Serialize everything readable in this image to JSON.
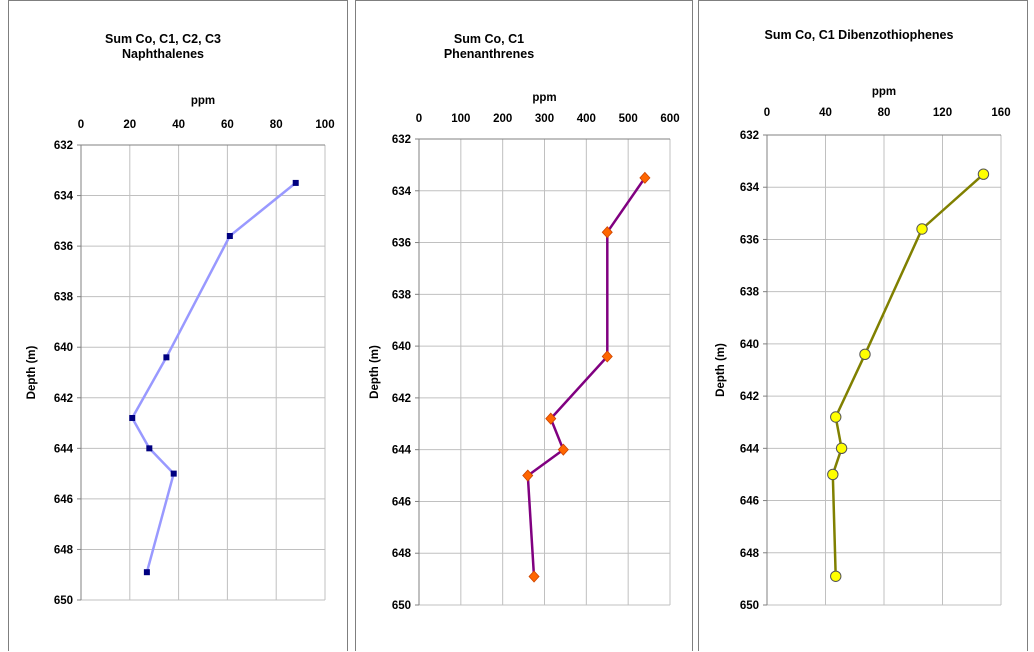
{
  "chart_data": [
    {
      "type": "line",
      "title": [
        "Sum Co, C1, C2, C3",
        "Naphthalenes"
      ],
      "xlabel": "ppm",
      "ylabel": "Depth (m)",
      "xlim": [
        0,
        100
      ],
      "ylim": [
        632,
        650
      ],
      "y_inverted": true,
      "grid": "on",
      "x_axis_position": "top",
      "xticks": [
        "0",
        "20",
        "40",
        "60",
        "80",
        "100"
      ],
      "yticks": [
        "632",
        "634",
        "636",
        "638",
        "640",
        "642",
        "644",
        "646",
        "648",
        "650"
      ],
      "series": [
        {
          "color": "#9999ff",
          "marker": "square",
          "marker_color": "#000080",
          "x": [
            88,
            61,
            35,
            21,
            28,
            38,
            27
          ],
          "y": [
            633.5,
            635.6,
            640.4,
            642.8,
            644.0,
            645.0,
            648.9
          ]
        }
      ]
    },
    {
      "type": "line",
      "title": [
        "Sum Co, C1",
        "Phenanthrenes"
      ],
      "xlabel": "ppm",
      "ylabel": "Depth (m)",
      "xlim": [
        0,
        600
      ],
      "ylim": [
        632,
        650
      ],
      "y_inverted": true,
      "grid": "on",
      "x_axis_position": "top",
      "xticks": [
        "0",
        "100",
        "200",
        "300",
        "400",
        "500",
        "600"
      ],
      "yticks": [
        "632",
        "634",
        "636",
        "638",
        "640",
        "642",
        "644",
        "646",
        "648",
        "650"
      ],
      "series": [
        {
          "color": "#800080",
          "marker": "diamond",
          "marker_color": "#ff6600",
          "x": [
            540,
            450,
            450,
            315,
            345,
            260,
            275
          ],
          "y": [
            633.5,
            635.6,
            640.4,
            642.8,
            644.0,
            645.0,
            648.9
          ]
        }
      ]
    },
    {
      "type": "line",
      "title": [
        "Sum Co, C1 Dibenzothiophenes"
      ],
      "xlabel": "ppm",
      "ylabel": "Depth (m)",
      "xlim": [
        0,
        160
      ],
      "ylim": [
        632,
        650
      ],
      "y_inverted": true,
      "grid": "on",
      "x_axis_position": "top",
      "xticks": [
        "0",
        "40",
        "80",
        "120",
        "160"
      ],
      "yticks": [
        "632",
        "634",
        "636",
        "638",
        "640",
        "642",
        "644",
        "646",
        "648",
        "650"
      ],
      "series": [
        {
          "color": "#808000",
          "marker": "circle",
          "marker_color": "#ffff00",
          "x": [
            148,
            106,
            67,
            47,
            51,
            45,
            47
          ],
          "y": [
            633.5,
            635.6,
            640.4,
            642.8,
            644.0,
            645.0,
            648.9
          ]
        }
      ]
    }
  ]
}
